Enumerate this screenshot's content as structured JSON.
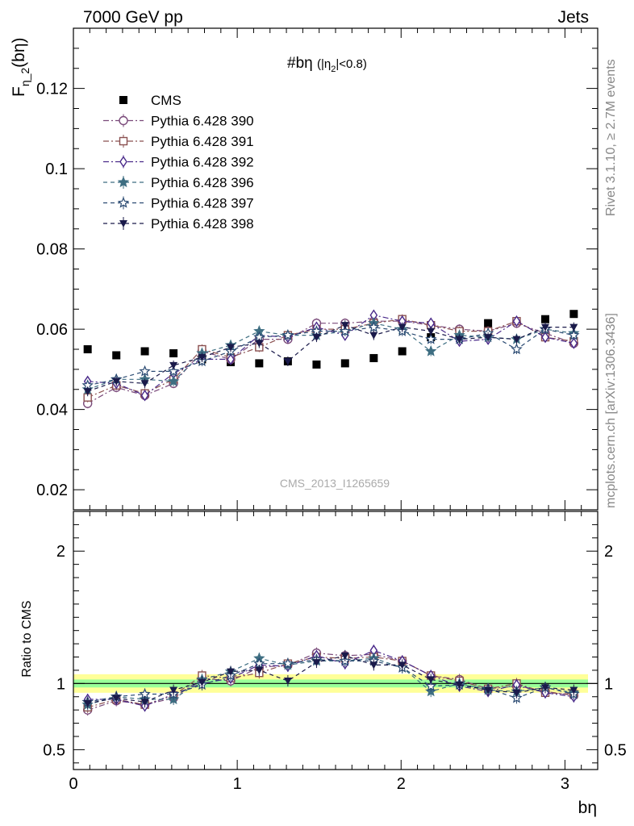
{
  "header": {
    "left": "7000 GeV pp",
    "right": "Jets"
  },
  "side_text": {
    "rivet": "Rivet 3.1.10, ≥ 2.7M events",
    "mcplots": "mcplots.cern.ch [arXiv:1306.3436]"
  },
  "chart_data": [
    {
      "type": "scatter",
      "panel": "main",
      "title": "#bη",
      "title_sub": "(|η",
      "title_sub2": "2",
      "title_cond": "|<0.8)",
      "ylabel": "F",
      "ylabel_sub": "η_2",
      "ylabel_paren": "(bη)",
      "watermark": "CMS_2013_I1265659",
      "xlim": [
        0,
        3.2
      ],
      "ylim": [
        0.015,
        0.135
      ],
      "yticks": [
        0.02,
        0.04,
        0.06,
        0.08,
        0.1,
        0.12
      ],
      "ytick_labels": [
        "0.02",
        "0.04",
        "0.06",
        "0.08",
        "0.1",
        "0.12"
      ],
      "x": [
        0.087,
        0.262,
        0.436,
        0.611,
        0.785,
        0.96,
        1.134,
        1.309,
        1.484,
        1.658,
        1.833,
        2.007,
        2.182,
        2.356,
        2.531,
        2.705,
        2.88,
        3.054
      ],
      "series": [
        {
          "name": "CMS",
          "color": "#000000",
          "marker": "square-filled",
          "line": "none",
          "values": [
            0.055,
            0.0535,
            0.0545,
            0.054,
            0.0525,
            0.0518,
            0.0515,
            0.052,
            0.0512,
            0.0515,
            0.0528,
            0.0545,
            0.058,
            0.0585,
            0.0615,
            0.062,
            0.0625,
            0.0638
          ]
        },
        {
          "name": "Pythia 6.428 390",
          "color": "#7a4a7a",
          "marker": "circle-open",
          "line": "dashdot",
          "values": [
            0.0415,
            0.0455,
            0.0435,
            0.0465,
            0.0545,
            0.0525,
            0.0575,
            0.0575,
            0.0615,
            0.0615,
            0.062,
            0.062,
            0.061,
            0.06,
            0.0595,
            0.0615,
            0.059,
            0.0565
          ]
        },
        {
          "name": "Pythia 6.428 391",
          "color": "#8a5050",
          "marker": "square-open",
          "line": "dashdot",
          "values": [
            0.043,
            0.046,
            0.044,
            0.0475,
            0.055,
            0.053,
            0.0555,
            0.0585,
            0.06,
            0.06,
            0.0615,
            0.0625,
            0.061,
            0.0595,
            0.0595,
            0.062,
            0.058,
            0.057
          ]
        },
        {
          "name": "Pythia 6.428 392",
          "color": "#4a2a8a",
          "marker": "diamond-open",
          "line": "dashdot",
          "values": [
            0.047,
            0.0465,
            0.0435,
            0.049,
            0.0525,
            0.0525,
            0.0585,
            0.058,
            0.0605,
            0.0585,
            0.0635,
            0.062,
            0.0615,
            0.057,
            0.0575,
            0.062,
            0.058,
            0.0565
          ]
        },
        {
          "name": "Pythia 6.428 396",
          "color": "#3e6e82",
          "marker": "star-filled",
          "line": "dashed",
          "values": [
            0.045,
            0.0475,
            0.0475,
            0.047,
            0.054,
            0.056,
            0.0595,
            0.0585,
            0.0585,
            0.0595,
            0.0615,
            0.06,
            0.0545,
            0.0585,
            0.058,
            0.0575,
            0.06,
            0.059
          ]
        },
        {
          "name": "Pythia 6.428 397",
          "color": "#2a4a72",
          "marker": "star-open",
          "line": "dashed",
          "values": [
            0.046,
            0.0475,
            0.0495,
            0.0495,
            0.052,
            0.0545,
            0.058,
            0.0585,
            0.0595,
            0.0595,
            0.0605,
            0.0595,
            0.0575,
            0.0575,
            0.059,
            0.055,
            0.06,
            0.0585
          ]
        },
        {
          "name": "Pythia 6.428 398",
          "color": "#1a1a4a",
          "marker": "triangle-down-filled",
          "line": "dashed",
          "values": [
            0.0445,
            0.047,
            0.0465,
            0.051,
            0.053,
            0.0555,
            0.0565,
            0.052,
            0.058,
            0.061,
            0.0585,
            0.0605,
            0.0595,
            0.0575,
            0.058,
            0.0575,
            0.0605,
            0.0605
          ]
        }
      ]
    },
    {
      "type": "line",
      "panel": "ratio",
      "ylabel": "Ratio to CMS",
      "xlabel": "bη",
      "xlim": [
        0,
        3.2
      ],
      "ylim": [
        0.35,
        2.3
      ],
      "yticks": [
        0.5,
        1,
        2
      ],
      "ytick_labels": [
        "0.5",
        "1",
        "2"
      ],
      "xticks": [
        0,
        1,
        2,
        3
      ],
      "xtick_labels": [
        "0",
        "1",
        "2",
        "3"
      ],
      "band_yellow": {
        "color": "#ffff99",
        "lo": 0.93,
        "hi": 1.07
      },
      "band_green": {
        "color": "#99ff99",
        "lo": 0.97,
        "hi": 1.03
      },
      "reference_line": 1,
      "ratios": [
        {
          "name": "Pythia 6.428 390",
          "values": [
            0.8,
            0.87,
            0.84,
            0.89,
            1.04,
            1.02,
            1.12,
            1.14,
            1.23,
            1.21,
            1.22,
            1.17,
            1.06,
            1.03,
            0.96,
            0.98,
            0.94,
            0.91
          ]
        },
        {
          "name": "Pythia 6.428 391",
          "values": [
            0.82,
            0.88,
            0.84,
            0.91,
            1.06,
            1.04,
            1.08,
            1.15,
            1.2,
            1.19,
            1.2,
            1.17,
            1.06,
            1.02,
            0.96,
            1.0,
            0.93,
            0.92
          ]
        },
        {
          "name": "Pythia 6.428 392",
          "values": [
            0.88,
            0.88,
            0.83,
            0.92,
            1.0,
            1.04,
            1.14,
            1.13,
            1.21,
            1.15,
            1.25,
            1.17,
            1.06,
            0.98,
            0.94,
            0.99,
            0.93,
            0.9
          ]
        },
        {
          "name": "Pythia 6.428 396",
          "values": [
            0.84,
            0.9,
            0.88,
            0.88,
            1.03,
            1.09,
            1.19,
            1.14,
            1.17,
            1.17,
            1.19,
            1.12,
            0.94,
            1.0,
            0.95,
            0.94,
            0.97,
            0.93
          ]
        },
        {
          "name": "Pythia 6.428 397",
          "values": [
            0.86,
            0.9,
            0.92,
            0.92,
            0.99,
            1.06,
            1.15,
            1.15,
            1.18,
            1.17,
            1.17,
            1.12,
            0.98,
            0.99,
            0.96,
            0.89,
            0.97,
            0.92
          ]
        },
        {
          "name": "Pythia 6.428 398",
          "values": [
            0.85,
            0.89,
            0.86,
            0.95,
            1.01,
            1.09,
            1.1,
            1.02,
            1.16,
            1.21,
            1.14,
            1.14,
            1.03,
            0.99,
            0.95,
            0.93,
            0.97,
            0.95
          ]
        }
      ]
    }
  ]
}
